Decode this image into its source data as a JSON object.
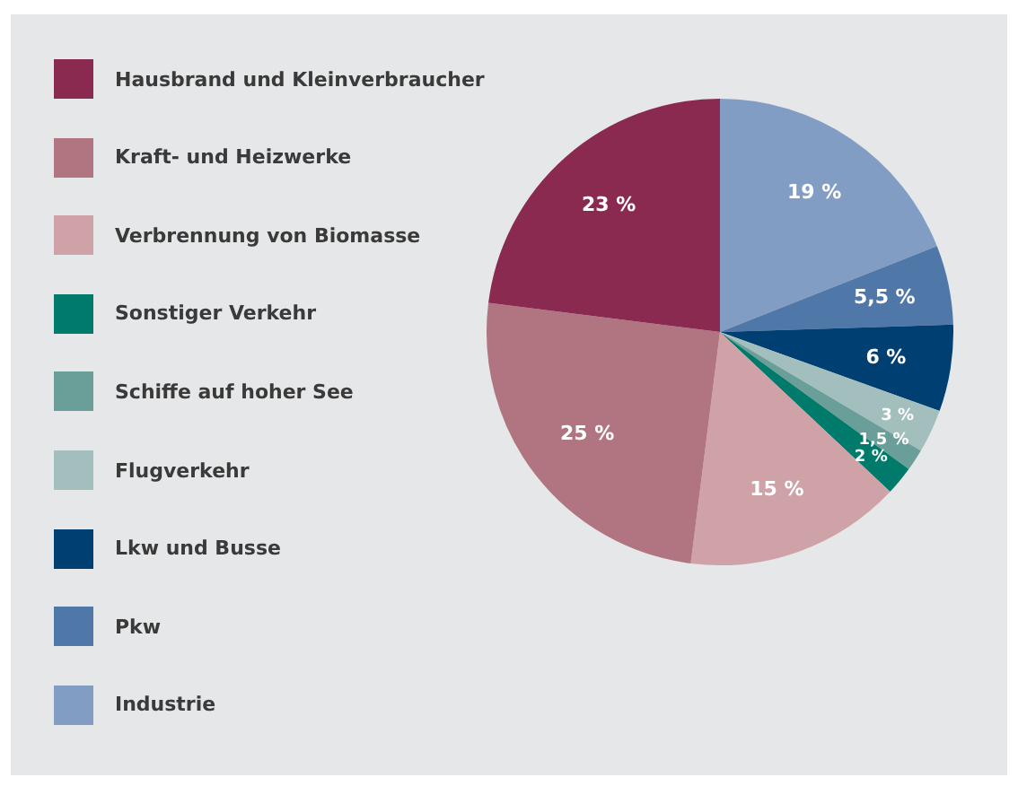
{
  "chart_data": {
    "type": "pie",
    "categories": [
      "Hausbrand und Kleinverbraucher",
      "Kraft- und Heizwerke",
      "Verbrennung von Biomasse",
      "Sonstiger Verkehr",
      "Schiffe auf hoher See",
      "Flugverkehr",
      "Lkw und Busse",
      "Pkw",
      "Industrie"
    ],
    "values": [
      23,
      25,
      15,
      2,
      1.5,
      3,
      6,
      5.5,
      19
    ],
    "colors": [
      "#8b2a50",
      "#b07580",
      "#cfa2a8",
      "#007a6a",
      "#6a9e98",
      "#a3bfbd",
      "#003f72",
      "#4f77a7",
      "#829dc4"
    ],
    "value_labels": [
      "23 %",
      "25 %",
      "15 %",
      "2 %",
      "1,5 %",
      "3 %",
      "6 %",
      "5,5 %",
      "19 %"
    ],
    "legend": "left"
  }
}
